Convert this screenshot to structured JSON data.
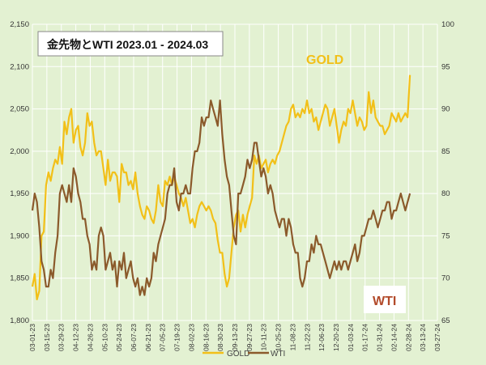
{
  "chart_data": {
    "type": "line",
    "title": "金先物とWTI  2023.01 - 2024.03",
    "x_ticks": [
      "03-01-23",
      "03-15-23",
      "03-29-23",
      "04-12-23",
      "04-26-23",
      "05-10-23",
      "05-24-23",
      "06-07-23",
      "06-21-23",
      "07-05-23",
      "07-19-23",
      "08-02-23",
      "08-16-23",
      "08-30-23",
      "09-13-23",
      "09-27-23",
      "10-11-23",
      "10-25-23",
      "11-08-23",
      "11-22-23",
      "12-06-23",
      "12-20-23",
      "01-03-24",
      "01-17-24",
      "01-31-24",
      "02-14-24",
      "02-28-24",
      "03-13-24",
      "03-27-24"
    ],
    "y_left": {
      "min": 1800,
      "max": 2150,
      "step": 50,
      "tick_labels": [
        "1,800",
        "1,850",
        "1,900",
        "1,950",
        "2,000",
        "2,050",
        "2,100",
        "2,150"
      ]
    },
    "y_right": {
      "min": 65,
      "max": 100,
      "step": 5,
      "tick_labels": [
        "65",
        "70",
        "75",
        "80",
        "85",
        "90",
        "95",
        "100"
      ]
    },
    "grid": true,
    "legend_position": "bottom",
    "series": [
      {
        "name": "GOLD",
        "axis": "left",
        "color": "#f2c018",
        "values": [
          1840,
          1855,
          1825,
          1835,
          1900,
          1905,
          1960,
          1975,
          1965,
          1980,
          1990,
          1985,
          2005,
          1985,
          2035,
          2020,
          2040,
          2050,
          2010,
          2025,
          2030,
          2005,
          1995,
          2010,
          2045,
          2030,
          2035,
          2010,
          1995,
          2000,
          2000,
          1980,
          1960,
          1990,
          1965,
          1975,
          1975,
          1970,
          1940,
          1985,
          1975,
          1975,
          1960,
          1965,
          1955,
          1975,
          1950,
          1935,
          1925,
          1920,
          1935,
          1930,
          1920,
          1915,
          1930,
          1960,
          1940,
          1935,
          1965,
          1960,
          1970,
          1960,
          1970,
          1960,
          1950,
          1945,
          1935,
          1945,
          1930,
          1915,
          1920,
          1910,
          1925,
          1935,
          1940,
          1935,
          1930,
          1935,
          1930,
          1920,
          1915,
          1895,
          1880,
          1880,
          1855,
          1840,
          1850,
          1880,
          1910,
          1925,
          1930,
          1905,
          1925,
          1910,
          1925,
          1935,
          1945,
          1995,
          1985,
          1995,
          1980,
          1985,
          1990,
          1975,
          1985,
          1990,
          1985,
          1995,
          2000,
          2010,
          2020,
          2030,
          2035,
          2050,
          2055,
          2040,
          2045,
          2040,
          2050,
          2045,
          2060,
          2045,
          2050,
          2035,
          2040,
          2025,
          2035,
          2045,
          2055,
          2050,
          2030,
          2040,
          2050,
          2030,
          2010,
          2025,
          2035,
          2030,
          2050,
          2045,
          2060,
          2045,
          2030,
          2040,
          2035,
          2025,
          2030,
          2070,
          2045,
          2060,
          2040,
          2035,
          2030,
          2030,
          2020,
          2025,
          2030,
          2045,
          2040,
          2035,
          2045,
          2035,
          2040,
          2045,
          2040,
          2090
        ]
      },
      {
        "name": "WTI",
        "axis": "right",
        "color": "#8b5a2b",
        "values": [
          78,
          80,
          79,
          76,
          72,
          71,
          69,
          69,
          71,
          70,
          73,
          75,
          80,
          81,
          80,
          79,
          81,
          79,
          83,
          82,
          80,
          79,
          77,
          77,
          75,
          74,
          71,
          72,
          71,
          75,
          76,
          75,
          71,
          72,
          73,
          71,
          72,
          69,
          72,
          71,
          73,
          70,
          71,
          72,
          70,
          69,
          70,
          68,
          69,
          68,
          70,
          69,
          70,
          73,
          72,
          74,
          75,
          76,
          77,
          80,
          81,
          81,
          83,
          79,
          78,
          80,
          80,
          81,
          80,
          80,
          83,
          85,
          85,
          86,
          89,
          88,
          89,
          89,
          91,
          90,
          89,
          88,
          91,
          87,
          84,
          82,
          81,
          78,
          75,
          74,
          80,
          80,
          81,
          82,
          84,
          83,
          84,
          86,
          86,
          84,
          82,
          83,
          82,
          80,
          81,
          80,
          78,
          77,
          76,
          77,
          77,
          75,
          77,
          76,
          74,
          73,
          73,
          70,
          69,
          70,
          72,
          72,
          74,
          73,
          75,
          74,
          74,
          73,
          72,
          71,
          70,
          71,
          72,
          71,
          72,
          71,
          72,
          72,
          71,
          72,
          73,
          74,
          72,
          73,
          75,
          75,
          76,
          77,
          77,
          78,
          77,
          76,
          77,
          78,
          78,
          79,
          79,
          77,
          78,
          78,
          79,
          80,
          79,
          78,
          79,
          80
        ]
      }
    ]
  },
  "legend": {
    "gold_label": "GOLD",
    "wti_label": "WTI"
  },
  "colors": {
    "background": "#e3f1d2",
    "grid": "#ffffff",
    "gold": "#f2c018",
    "wti": "#8b5a2b"
  }
}
